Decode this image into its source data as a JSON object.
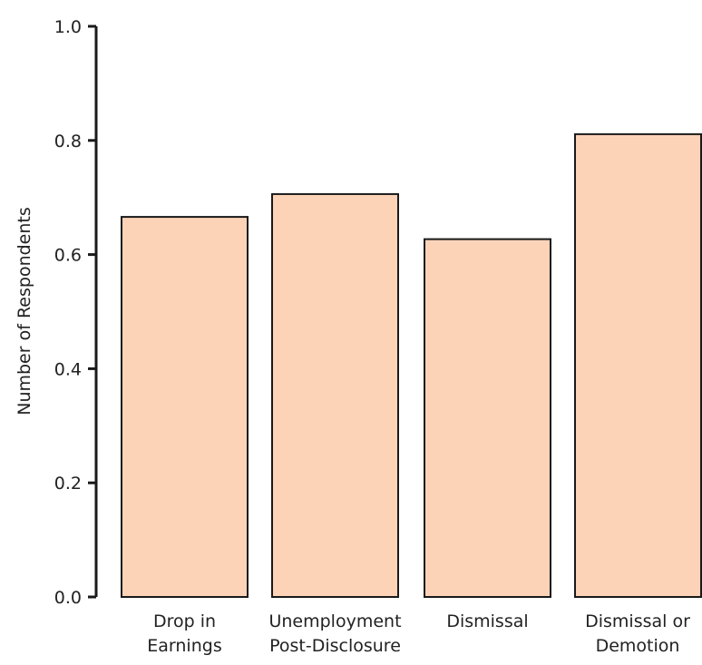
{
  "chart_data": {
    "type": "bar",
    "title": "",
    "xlabel": "",
    "ylabel": "Number of Respondents",
    "categories": [
      [
        "Drop in",
        "Earnings"
      ],
      [
        "Unemployment",
        "Post-Disclosure"
      ],
      [
        "Dismissal"
      ],
      [
        "Dismissal or",
        "Demotion"
      ]
    ],
    "values": [
      0.666,
      0.706,
      0.627,
      0.811
    ],
    "ylim": [
      0.0,
      1.0
    ],
    "yticks": [
      "0.0",
      "0.2",
      "0.4",
      "0.6",
      "0.8",
      "1.0"
    ],
    "grid": false,
    "legend": "none",
    "colors": {
      "bar_fill": "#FDD3B8",
      "bar_stroke": "#1a1a1a",
      "axis": "#1a1a1a",
      "text": "#222222"
    }
  }
}
